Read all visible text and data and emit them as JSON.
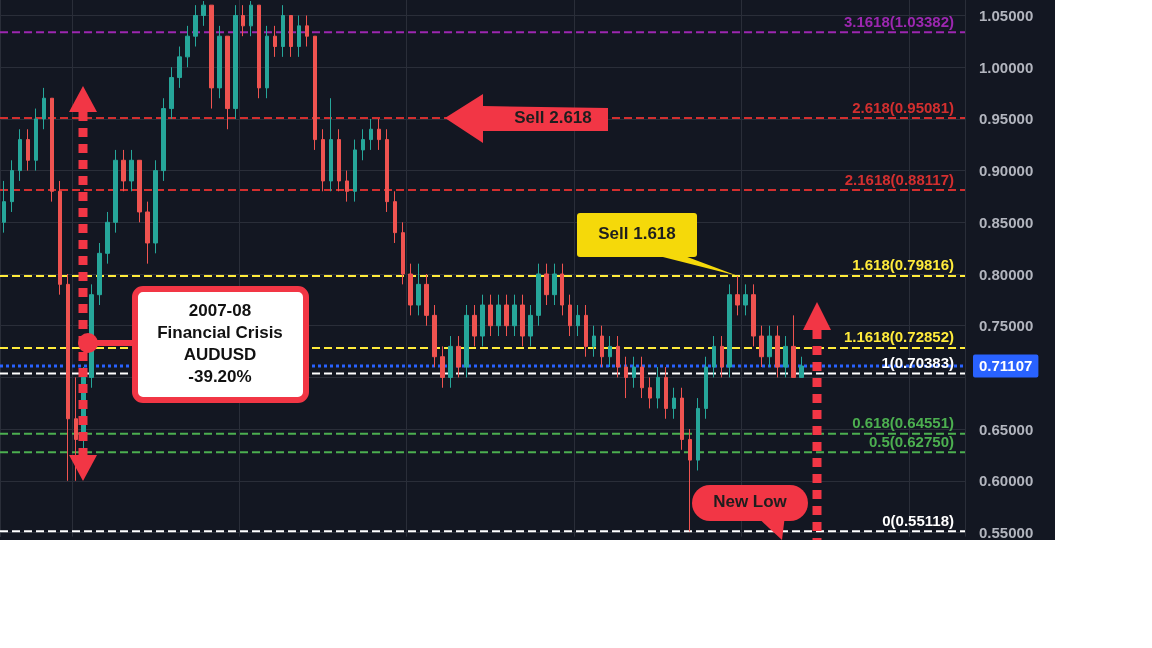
{
  "chart_data": {
    "type": "candlestick",
    "categories": [
      null,
      null,
      null,
      null,
      null,
      null,
      null,
      null,
      null,
      null,
      null,
      null,
      null,
      null,
      null,
      null,
      null,
      null,
      null,
      null,
      null,
      null,
      null,
      null,
      null,
      null,
      null,
      null,
      null,
      null,
      null,
      null,
      null,
      null,
      null,
      null,
      null,
      null,
      null,
      null,
      null,
      null,
      null,
      null,
      null,
      null,
      null,
      null,
      null,
      null,
      null,
      null,
      null,
      null,
      null,
      null,
      null,
      null,
      null,
      null,
      null,
      null,
      null,
      null,
      null,
      null,
      null,
      null,
      null,
      null,
      null,
      null,
      null,
      null,
      null,
      null,
      null,
      null,
      null,
      null,
      null,
      null,
      null,
      null,
      null,
      null,
      null,
      null,
      null,
      null,
      null,
      null,
      null,
      null,
      null,
      null,
      null,
      null,
      null,
      null,
      null,
      null,
      null,
      null,
      null,
      null,
      null,
      null,
      null,
      null,
      null,
      null,
      null,
      null,
      null,
      null,
      null,
      null,
      null,
      null,
      null
    ],
    "ohlc": [
      [
        0.85,
        0.89,
        0.84,
        0.87
      ],
      [
        0.87,
        0.91,
        0.86,
        0.9
      ],
      [
        0.9,
        0.94,
        0.89,
        0.93
      ],
      [
        0.93,
        0.94,
        0.9,
        0.91
      ],
      [
        0.91,
        0.96,
        0.9,
        0.95
      ],
      [
        0.95,
        0.98,
        0.94,
        0.97
      ],
      [
        0.97,
        0.97,
        0.87,
        0.88
      ],
      [
        0.88,
        0.89,
        0.78,
        0.79
      ],
      [
        0.79,
        0.8,
        0.6,
        0.66
      ],
      [
        0.66,
        0.7,
        0.6,
        0.64
      ],
      [
        0.64,
        0.71,
        0.63,
        0.7
      ],
      [
        0.7,
        0.79,
        0.69,
        0.78
      ],
      [
        0.78,
        0.83,
        0.77,
        0.82
      ],
      [
        0.82,
        0.86,
        0.81,
        0.85
      ],
      [
        0.85,
        0.92,
        0.84,
        0.91
      ],
      [
        0.91,
        0.92,
        0.88,
        0.89
      ],
      [
        0.89,
        0.92,
        0.88,
        0.91
      ],
      [
        0.91,
        0.91,
        0.85,
        0.86
      ],
      [
        0.86,
        0.87,
        0.81,
        0.83
      ],
      [
        0.83,
        0.91,
        0.82,
        0.9
      ],
      [
        0.9,
        0.97,
        0.89,
        0.96
      ],
      [
        0.96,
        1.0,
        0.95,
        0.99
      ],
      [
        0.99,
        1.02,
        0.98,
        1.01
      ],
      [
        1.01,
        1.04,
        1.0,
        1.03
      ],
      [
        1.03,
        1.06,
        1.02,
        1.05
      ],
      [
        1.05,
        1.064,
        1.04,
        1.06
      ],
      [
        1.06,
        1.06,
        0.96,
        0.98
      ],
      [
        0.98,
        1.04,
        0.97,
        1.03
      ],
      [
        1.03,
        1.03,
        0.94,
        0.96
      ],
      [
        0.96,
        1.06,
        0.95,
        1.05
      ],
      [
        1.05,
        1.06,
        1.03,
        1.04
      ],
      [
        1.04,
        1.064,
        1.03,
        1.06
      ],
      [
        1.06,
        1.06,
        0.97,
        0.98
      ],
      [
        0.98,
        1.04,
        0.97,
        1.03
      ],
      [
        1.03,
        1.04,
        1.01,
        1.02
      ],
      [
        1.02,
        1.06,
        1.01,
        1.05
      ],
      [
        1.05,
        1.05,
        1.01,
        1.02
      ],
      [
        1.02,
        1.05,
        1.01,
        1.04
      ],
      [
        1.04,
        1.05,
        1.02,
        1.03
      ],
      [
        1.03,
        1.03,
        0.92,
        0.93
      ],
      [
        0.93,
        0.94,
        0.88,
        0.89
      ],
      [
        0.89,
        0.97,
        0.88,
        0.93
      ],
      [
        0.93,
        0.94,
        0.88,
        0.89
      ],
      [
        0.89,
        0.9,
        0.87,
        0.88
      ],
      [
        0.88,
        0.93,
        0.87,
        0.92
      ],
      [
        0.92,
        0.94,
        0.91,
        0.93
      ],
      [
        0.93,
        0.95,
        0.92,
        0.94
      ],
      [
        0.94,
        0.95,
        0.92,
        0.93
      ],
      [
        0.93,
        0.94,
        0.86,
        0.87
      ],
      [
        0.87,
        0.88,
        0.83,
        0.84
      ],
      [
        0.84,
        0.85,
        0.79,
        0.8
      ],
      [
        0.8,
        0.81,
        0.76,
        0.77
      ],
      [
        0.77,
        0.81,
        0.76,
        0.79
      ],
      [
        0.79,
        0.8,
        0.75,
        0.76
      ],
      [
        0.76,
        0.77,
        0.71,
        0.72
      ],
      [
        0.72,
        0.73,
        0.69,
        0.7
      ],
      [
        0.7,
        0.74,
        0.69,
        0.73
      ],
      [
        0.73,
        0.74,
        0.7,
        0.71
      ],
      [
        0.71,
        0.77,
        0.7,
        0.76
      ],
      [
        0.76,
        0.77,
        0.73,
        0.74
      ],
      [
        0.74,
        0.78,
        0.73,
        0.77
      ],
      [
        0.77,
        0.78,
        0.74,
        0.75
      ],
      [
        0.75,
        0.78,
        0.74,
        0.77
      ],
      [
        0.77,
        0.78,
        0.74,
        0.75
      ],
      [
        0.75,
        0.78,
        0.74,
        0.77
      ],
      [
        0.77,
        0.78,
        0.73,
        0.74
      ],
      [
        0.74,
        0.77,
        0.73,
        0.76
      ],
      [
        0.76,
        0.81,
        0.75,
        0.8
      ],
      [
        0.8,
        0.81,
        0.77,
        0.78
      ],
      [
        0.78,
        0.81,
        0.77,
        0.8
      ],
      [
        0.8,
        0.81,
        0.76,
        0.77
      ],
      [
        0.77,
        0.78,
        0.74,
        0.75
      ],
      [
        0.75,
        0.77,
        0.74,
        0.76
      ],
      [
        0.76,
        0.77,
        0.72,
        0.73
      ],
      [
        0.73,
        0.75,
        0.72,
        0.74
      ],
      [
        0.74,
        0.75,
        0.71,
        0.72
      ],
      [
        0.72,
        0.74,
        0.71,
        0.73
      ],
      [
        0.73,
        0.74,
        0.7,
        0.71
      ],
      [
        0.71,
        0.72,
        0.68,
        0.7
      ],
      [
        0.7,
        0.72,
        0.69,
        0.71
      ],
      [
        0.71,
        0.72,
        0.68,
        0.69
      ],
      [
        0.69,
        0.7,
        0.67,
        0.68
      ],
      [
        0.68,
        0.71,
        0.67,
        0.7
      ],
      [
        0.7,
        0.71,
        0.66,
        0.67
      ],
      [
        0.67,
        0.69,
        0.66,
        0.68
      ],
      [
        0.68,
        0.69,
        0.63,
        0.64
      ],
      [
        0.64,
        0.65,
        0.551,
        0.62
      ],
      [
        0.62,
        0.68,
        0.61,
        0.67
      ],
      [
        0.67,
        0.72,
        0.66,
        0.71
      ],
      [
        0.71,
        0.74,
        0.7,
        0.73
      ],
      [
        0.73,
        0.74,
        0.7,
        0.71
      ],
      [
        0.71,
        0.79,
        0.7,
        0.78
      ],
      [
        0.78,
        0.798,
        0.76,
        0.77
      ],
      [
        0.77,
        0.79,
        0.76,
        0.78
      ],
      [
        0.78,
        0.79,
        0.73,
        0.74
      ],
      [
        0.74,
        0.75,
        0.71,
        0.72
      ],
      [
        0.72,
        0.75,
        0.71,
        0.74
      ],
      [
        0.74,
        0.75,
        0.7,
        0.71
      ],
      [
        0.71,
        0.74,
        0.7,
        0.73
      ],
      [
        0.73,
        0.76,
        0.7,
        0.7
      ],
      [
        0.7,
        0.72,
        0.7,
        0.711
      ],
      null,
      null,
      null,
      null,
      null,
      null,
      null,
      null,
      null,
      null,
      null,
      null,
      null,
      null,
      null,
      null,
      null,
      null,
      null,
      null
    ],
    "ylim": [
      0.546,
      1.065
    ],
    "yticks": [
      {
        "value": 0.55,
        "label": "0.55000"
      },
      {
        "value": 0.6,
        "label": "0.60000"
      },
      {
        "value": 0.65,
        "label": "0.65000"
      },
      {
        "value": 0.7,
        "label": null
      },
      {
        "value": 0.75,
        "label": "0.75000"
      },
      {
        "value": 0.8,
        "label": "0.80000"
      },
      {
        "value": 0.85,
        "label": "0.85000"
      },
      {
        "value": 0.9,
        "label": "0.90000"
      },
      {
        "value": 0.95,
        "label": "0.95000"
      },
      {
        "value": 1.0,
        "label": "1.00000"
      },
      {
        "value": 1.05,
        "label": "1.05000"
      }
    ],
    "tick_labels": "y",
    "grid": true,
    "ref_lines": [
      {
        "axis": "y",
        "value": 1.03382,
        "label": "3.1618(1.03382)",
        "color": "#9c27b0",
        "line_style": "dashed"
      },
      {
        "axis": "y",
        "value": 0.95081,
        "label": "2.618(0.95081)",
        "color": "#d32f2f",
        "line_style": "dashed"
      },
      {
        "axis": "y",
        "value": 0.88117,
        "label": "2.1618(0.88117)",
        "color": "#d32f2f",
        "line_style": "dashed"
      },
      {
        "axis": "y",
        "value": 0.79816,
        "label": "1.618(0.79816)",
        "color": "#ffeb3b",
        "line_style": "dashed"
      },
      {
        "axis": "y",
        "value": 0.72852,
        "label": "1.1618(0.72852)",
        "color": "#ffeb3b",
        "line_style": "dashed"
      },
      {
        "axis": "y",
        "value": 0.70383,
        "label": "1(0.70383)",
        "color": "#ffffff",
        "line_style": "dashed"
      },
      {
        "axis": "y",
        "value": 0.64551,
        "label": "0.618(0.64551)",
        "color": "#4caf50",
        "line_style": "dashed"
      },
      {
        "axis": "y",
        "value": 0.6275,
        "label": "0.5(0.62750)",
        "color": "#4caf50",
        "line_style": "dashed"
      },
      {
        "axis": "y",
        "value": 0.55118,
        "label": "0(0.55118)",
        "color": "#ffffff",
        "line_style": "dashed"
      },
      {
        "axis": "y",
        "value": 0.71107,
        "label": "0.71107",
        "color": "#2962ff",
        "line_style": "dotted"
      }
    ],
    "annotations": [
      {
        "text": "Sell 2.618",
        "y": 0.95081
      },
      {
        "text": "Sell 1.618",
        "y": 0.798
      },
      "New Low",
      "2007-08\nFinancial Crisis\nAUDUSD\n-39.20%"
    ]
  }
}
